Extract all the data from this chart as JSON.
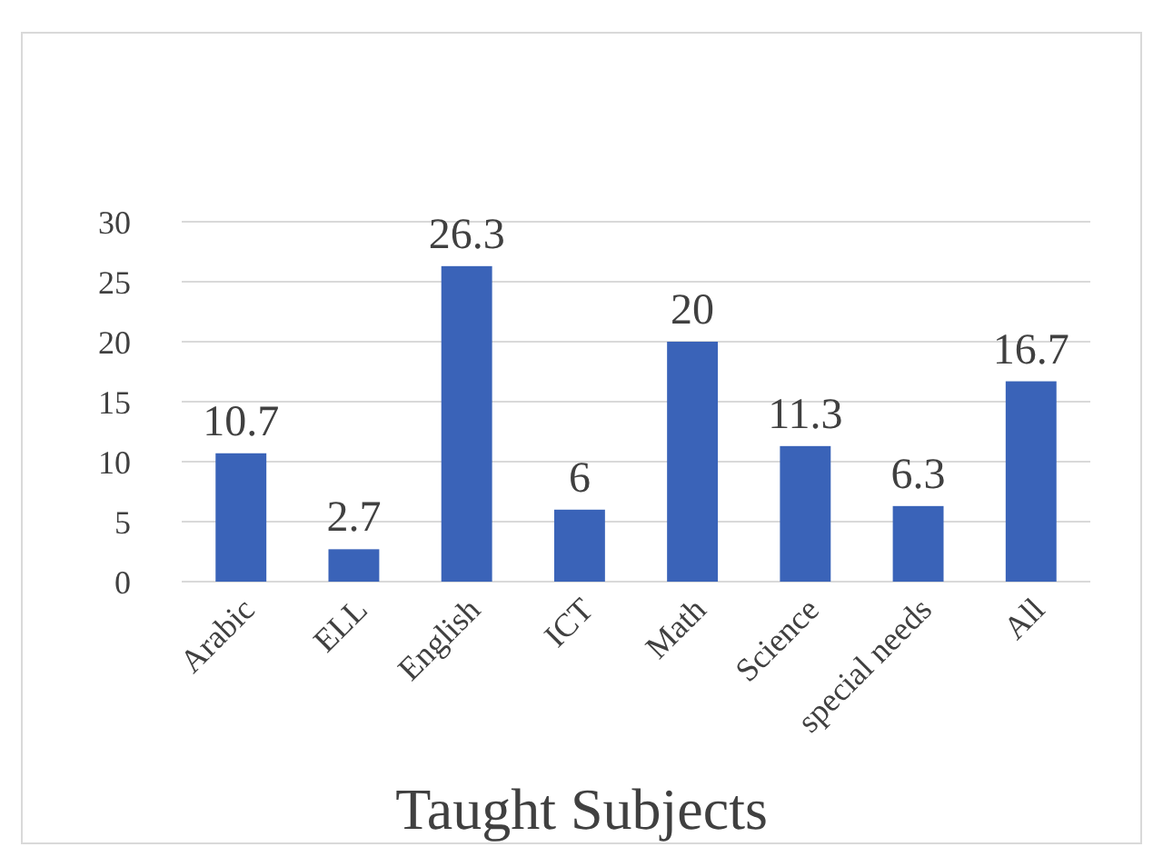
{
  "chart_data": {
    "type": "bar",
    "xlabel": "Taught Subjects",
    "categories": [
      "Arabic",
      "ELL",
      "English",
      "ICT",
      "Math",
      "Science",
      "special needs",
      "All"
    ],
    "values": [
      10.7,
      2.7,
      26.3,
      6,
      20,
      11.3,
      6.3,
      16.7
    ],
    "color": "#3a63b8",
    "ylim": [
      0,
      30
    ],
    "yticks": [
      0,
      5,
      10,
      15,
      20,
      25,
      30
    ],
    "grid": "y",
    "data_labels": true
  }
}
